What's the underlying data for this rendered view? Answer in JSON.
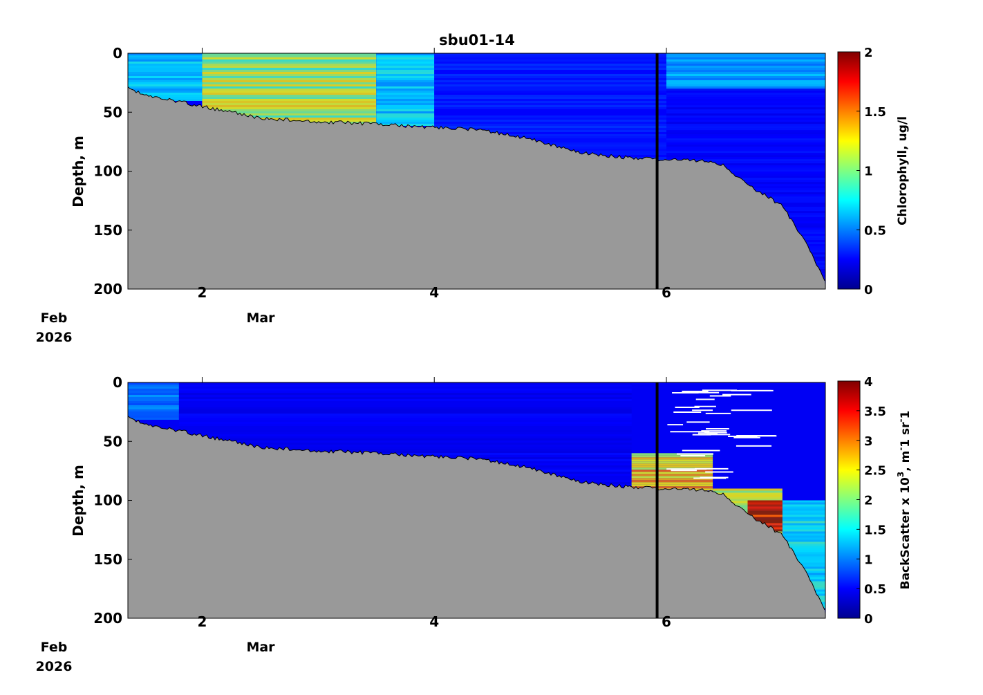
{
  "figure_title": "sbu01-14",
  "colormap": [
    "#00008f",
    "#0000ff",
    "#0080ff",
    "#00ffff",
    "#80ff80",
    "#ffff00",
    "#ff8000",
    "#ff0000",
    "#800000"
  ],
  "seafloor_color": "#999999",
  "chart_data": [
    {
      "type": "heatmap",
      "panel": "top",
      "title": "sbu01-14",
      "ylabel": "Depth, m",
      "ylim": [
        200,
        0
      ],
      "yticks": [
        "0",
        "50",
        "100",
        "150",
        "200"
      ],
      "xlim_days": [
        1.36,
        7.37
      ],
      "xticks": [
        "2",
        "4",
        "6"
      ],
      "date_labels": [
        {
          "month": "Feb",
          "year": "2026"
        },
        {
          "month": "Mar"
        }
      ],
      "marker_time_day": 5.92,
      "colorbar": {
        "label": "Chlorophyll, ug/l",
        "range": [
          0,
          2
        ],
        "ticks": [
          "0",
          "0.5",
          "1",
          "1.5",
          "2"
        ]
      },
      "bottom_depth_profile": {
        "time_day": [
          1.36,
          1.5,
          2.0,
          2.5,
          3.0,
          3.5,
          4.0,
          4.4,
          4.8,
          5.3,
          5.6,
          5.92,
          6.3,
          6.5,
          6.7,
          6.85,
          7.0,
          7.2,
          7.37
        ],
        "depth_m": [
          30,
          35,
          45,
          55,
          58,
          60,
          63,
          65,
          72,
          85,
          88,
          90,
          91,
          95,
          112,
          120,
          130,
          160,
          195
        ]
      },
      "field_summary": [
        {
          "time_day": [
            1.36,
            2.0
          ],
          "depth_m": [
            0,
            40
          ],
          "value": 0.7
        },
        {
          "time_day": [
            2.0,
            3.5
          ],
          "depth_m": [
            0,
            60
          ],
          "value": 1.1
        },
        {
          "time_day": [
            3.5,
            4.0
          ],
          "depth_m": [
            0,
            60
          ],
          "value": 0.7
        },
        {
          "time_day": [
            4.0,
            6.0
          ],
          "depth_m": [
            0,
            90
          ],
          "value": 0.3
        },
        {
          "time_day": [
            6.0,
            7.37
          ],
          "depth_m": [
            0,
            30
          ],
          "value": 0.6
        },
        {
          "time_day": [
            6.0,
            7.37
          ],
          "depth_m": [
            30,
            190
          ],
          "value": 0.25
        }
      ]
    },
    {
      "type": "heatmap",
      "panel": "bottom",
      "title": "",
      "ylabel": "Depth, m",
      "ylim": [
        200,
        0
      ],
      "yticks": [
        "0",
        "50",
        "100",
        "150",
        "200"
      ],
      "xlim_days": [
        1.36,
        7.37
      ],
      "xticks": [
        "2",
        "4",
        "6"
      ],
      "date_labels": [
        {
          "month": "Feb",
          "year": "2026"
        },
        {
          "month": "Mar"
        }
      ],
      "marker_time_day": 5.92,
      "colorbar": {
        "label": "BackScatter x 10^3, m^-1 sr^-1",
        "label_parts": [
          "BackScatter x 10",
          "3",
          ", m",
          "-",
          "1 sr",
          "-",
          "1"
        ],
        "range": [
          0,
          4
        ],
        "ticks": [
          "0",
          "0.5",
          "1",
          "1.5",
          "2",
          "2.5",
          "3",
          "3.5",
          "4"
        ]
      },
      "bottom_depth_profile": {
        "time_day": [
          1.36,
          1.5,
          2.0,
          2.5,
          3.0,
          3.5,
          4.0,
          4.4,
          4.8,
          5.3,
          5.6,
          5.92,
          6.3,
          6.5,
          6.7,
          6.85,
          7.0,
          7.2,
          7.37
        ],
        "depth_m": [
          30,
          35,
          45,
          55,
          58,
          60,
          63,
          65,
          72,
          85,
          88,
          90,
          91,
          95,
          112,
          120,
          130,
          160,
          195
        ]
      },
      "field_summary": [
        {
          "time_day": [
            1.36,
            1.8
          ],
          "depth_m": [
            0,
            30
          ],
          "value": 1.0
        },
        {
          "time_day": [
            1.8,
            5.7
          ],
          "depth_m": [
            0,
            90
          ],
          "value": 0.45
        },
        {
          "time_day": [
            5.7,
            6.4
          ],
          "depth_m": [
            60,
            90
          ],
          "value": 2.6
        },
        {
          "time_day": [
            6.4,
            7.0
          ],
          "depth_m": [
            90,
            130
          ],
          "value": 2.2
        },
        {
          "time_day": [
            6.7,
            7.0
          ],
          "depth_m": [
            100,
            125
          ],
          "value": 4.0
        },
        {
          "time_day": [
            7.0,
            7.37
          ],
          "depth_m": [
            100,
            190
          ],
          "value": 1.5
        }
      ]
    }
  ]
}
